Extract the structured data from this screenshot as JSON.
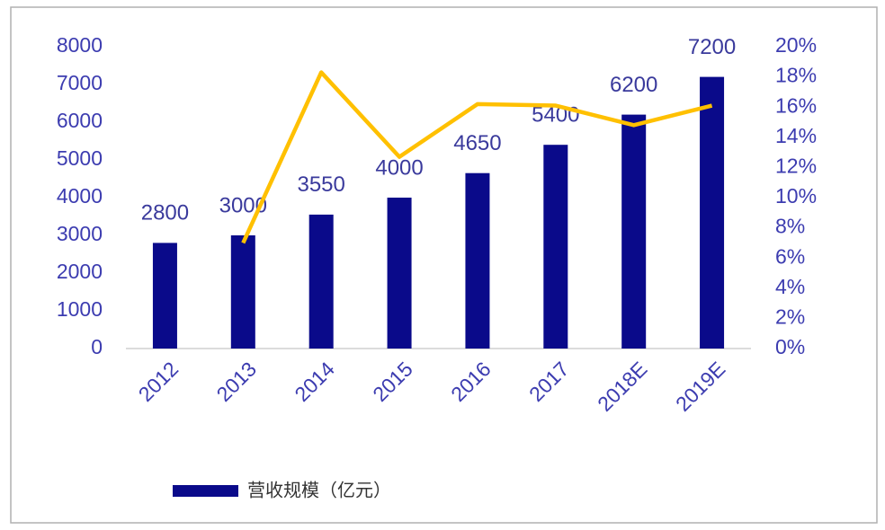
{
  "chart_data": {
    "type": "bar",
    "categories": [
      "2012",
      "2013",
      "2014",
      "2015",
      "2016",
      "2017",
      "2018E",
      "2019E"
    ],
    "series": [
      {
        "name": "营收规模（亿元）",
        "type": "bar",
        "color": "#0a0a8a",
        "values": [
          2800,
          3000,
          3550,
          4000,
          4650,
          5400,
          6200,
          7200
        ]
      },
      {
        "type": "line",
        "axis": "y2",
        "color": "#ffc000",
        "values": [
          null,
          7,
          18.3,
          12.7,
          16.2,
          16.1,
          14.8,
          16.1
        ]
      }
    ],
    "ylim": [
      0,
      8000
    ],
    "yticks": [
      0,
      1000,
      2000,
      3000,
      4000,
      5000,
      6000,
      7000,
      8000
    ],
    "y2lim": [
      0,
      20
    ],
    "y2ticks": [
      {
        "value": 0,
        "label": "0%"
      },
      {
        "value": 2,
        "label": "2%"
      },
      {
        "value": 4,
        "label": "4%"
      },
      {
        "value": 6,
        "label": "6%"
      },
      {
        "value": 8,
        "label": "8%"
      },
      {
        "value": 10,
        "label": "10%"
      },
      {
        "value": 12,
        "label": "12%"
      },
      {
        "value": 14,
        "label": "14%"
      },
      {
        "value": 16,
        "label": "16%"
      },
      {
        "value": 18,
        "label": "18%"
      },
      {
        "value": 20,
        "label": "20%"
      }
    ],
    "legend": "bottom-left"
  }
}
